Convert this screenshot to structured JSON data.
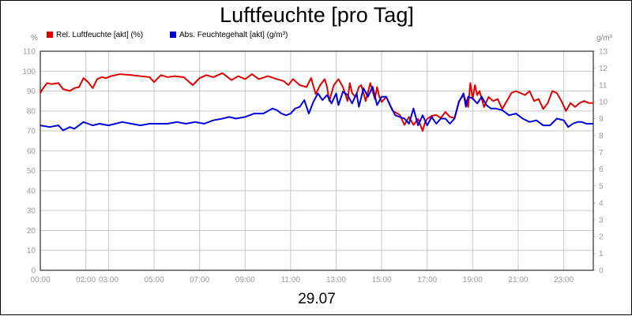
{
  "title": "Luftfeuchte [pro Tag]",
  "date": "29.07",
  "chart_data": {
    "type": "line",
    "title": "Luftfeuchte [pro Tag]",
    "xlabel": "29.07",
    "x_unit": "time of day (hours)",
    "xlim": [
      0,
      24.3
    ],
    "x_ticks": [
      {
        "v": 0,
        "label": "00:00"
      },
      {
        "v": 2,
        "label": "02:00"
      },
      {
        "v": 3,
        "label": "03:00"
      },
      {
        "v": 5,
        "label": "05:00"
      },
      {
        "v": 7,
        "label": "07:00"
      },
      {
        "v": 9,
        "label": "09:00"
      },
      {
        "v": 11,
        "label": "11:00"
      },
      {
        "v": 13,
        "label": "13:00"
      },
      {
        "v": 15,
        "label": "15:00"
      },
      {
        "v": 17,
        "label": "17:00"
      },
      {
        "v": 19,
        "label": "19:00"
      },
      {
        "v": 21,
        "label": "21:00"
      },
      {
        "v": 23,
        "label": "23:00"
      }
    ],
    "y_left": {
      "unit": "%",
      "min": 0,
      "max": 110,
      "step": 10
    },
    "y_right": {
      "unit": "g/m³",
      "min": 0,
      "max": 13,
      "step": 1
    },
    "grid": true,
    "legend_position": "top-left",
    "series": [
      {
        "name": "Rel. Luftfeuchte [akt] (%)",
        "color": "#e00000",
        "axis": "left",
        "x": [
          0,
          0.1,
          0.3,
          0.5,
          0.8,
          1.0,
          1.3,
          1.5,
          1.7,
          1.9,
          2.1,
          2.3,
          2.5,
          2.7,
          2.9,
          3.1,
          3.5,
          4.0,
          4.4,
          4.8,
          5.0,
          5.3,
          5.6,
          5.9,
          6.3,
          6.7,
          7.0,
          7.3,
          7.6,
          8.0,
          8.4,
          8.7,
          9.0,
          9.3,
          9.6,
          10.0,
          10.4,
          10.7,
          10.9,
          11.1,
          11.4,
          11.7,
          11.9,
          12.1,
          12.3,
          12.5,
          12.6,
          12.7,
          12.9,
          13.1,
          13.3,
          13.5,
          13.6,
          13.7,
          13.85,
          14.0,
          14.1,
          14.3,
          14.5,
          14.7,
          14.8,
          14.9,
          15.0,
          15.2,
          15.5,
          15.8,
          16.0,
          16.2,
          16.4,
          16.6,
          16.8,
          16.9,
          17.0,
          17.2,
          17.4,
          17.6,
          17.8,
          18.0,
          18.2,
          18.4,
          18.6,
          18.8,
          18.9,
          19.0,
          19.1,
          19.2,
          19.3,
          19.5,
          19.7,
          19.9,
          20.1,
          20.3,
          20.5,
          20.7,
          20.9,
          21.1,
          21.3,
          21.5,
          21.7,
          21.9,
          22.1,
          22.3,
          22.5,
          22.7,
          22.9,
          23.1,
          23.3,
          23.5,
          23.7,
          23.9,
          24.1,
          24.3
        ],
        "values": [
          89,
          91,
          94,
          93.5,
          94,
          91,
          90,
          91.5,
          92,
          96.5,
          94.5,
          91.5,
          96,
          97,
          96.5,
          97.5,
          98.5,
          98,
          97.5,
          97,
          94.5,
          98,
          97,
          97.5,
          97,
          93,
          96.5,
          98,
          97,
          99,
          95.5,
          97.5,
          96,
          98.5,
          96,
          97.5,
          96,
          95,
          93,
          96,
          93,
          92,
          96.5,
          88.5,
          93,
          96,
          92,
          85,
          93,
          96,
          92,
          85,
          94,
          89,
          87,
          92,
          93,
          85,
          94,
          86,
          92,
          87,
          84.5,
          87,
          80,
          78,
          73,
          77,
          73,
          76,
          70,
          74,
          76,
          77.5,
          78,
          76.5,
          79.5,
          77,
          76.5,
          85,
          88,
          82,
          94,
          86,
          93,
          88,
          90,
          82,
          87,
          85,
          86,
          81,
          85,
          89,
          90,
          89,
          88,
          90,
          85,
          86,
          81,
          84,
          90,
          89,
          85,
          80,
          84,
          82,
          84,
          85,
          84,
          84
        ]
      },
      {
        "name": "Abs. Feuchtegehalt [akt] (g/m³)",
        "color": "#0000e0",
        "axis": "right",
        "x": [
          0,
          0.4,
          0.8,
          1.0,
          1.3,
          1.5,
          1.7,
          1.9,
          2.1,
          2.3,
          2.6,
          3.0,
          3.3,
          3.6,
          4.0,
          4.4,
          4.8,
          5.2,
          5.6,
          6.0,
          6.4,
          6.8,
          7.2,
          7.6,
          8.0,
          8.3,
          8.6,
          9.0,
          9.4,
          9.8,
          10.2,
          10.4,
          10.6,
          10.8,
          11.0,
          11.2,
          11.4,
          11.6,
          11.8,
          12.0,
          12.2,
          12.4,
          12.6,
          12.8,
          13.0,
          13.1,
          13.3,
          13.5,
          13.7,
          13.9,
          14.0,
          14.2,
          14.4,
          14.6,
          14.8,
          15.0,
          15.2,
          15.4,
          15.6,
          15.8,
          16.0,
          16.2,
          16.4,
          16.6,
          16.8,
          17.0,
          17.2,
          17.4,
          17.6,
          17.8,
          18.0,
          18.2,
          18.4,
          18.6,
          18.7,
          18.8,
          19.0,
          19.2,
          19.4,
          19.6,
          19.8,
          20.0,
          20.3,
          20.6,
          20.9,
          21.2,
          21.5,
          21.8,
          22.1,
          22.4,
          22.7,
          23.0,
          23.2,
          23.4,
          23.6,
          23.8,
          24.0,
          24.3
        ],
        "values": [
          8.6,
          8.5,
          8.6,
          8.3,
          8.5,
          8.4,
          8.6,
          8.8,
          8.7,
          8.6,
          8.7,
          8.6,
          8.7,
          8.8,
          8.7,
          8.6,
          8.7,
          8.7,
          8.7,
          8.8,
          8.7,
          8.8,
          8.7,
          8.9,
          9.0,
          9.1,
          9.0,
          9.1,
          9.3,
          9.3,
          9.6,
          9.5,
          9.3,
          9.2,
          9.3,
          9.6,
          9.7,
          10.1,
          9.3,
          10.0,
          10.5,
          10.1,
          10.4,
          9.9,
          10.5,
          9.8,
          10.6,
          10.4,
          9.9,
          10.5,
          9.7,
          10.8,
          10.3,
          10.9,
          9.8,
          10.3,
          10.3,
          9.7,
          9.2,
          9.1,
          9.0,
          8.7,
          9.6,
          8.6,
          9.2,
          8.6,
          9.1,
          8.7,
          9.0,
          9.0,
          8.7,
          9.0,
          10.0,
          10.5,
          9.7,
          10.3,
          10.2,
          9.9,
          10.3,
          9.8,
          9.6,
          9.6,
          9.5,
          9.2,
          9.3,
          9.0,
          8.8,
          8.9,
          8.6,
          8.6,
          9.0,
          8.9,
          8.5,
          8.7,
          8.8,
          8.8,
          8.7,
          8.7
        ]
      }
    ]
  }
}
